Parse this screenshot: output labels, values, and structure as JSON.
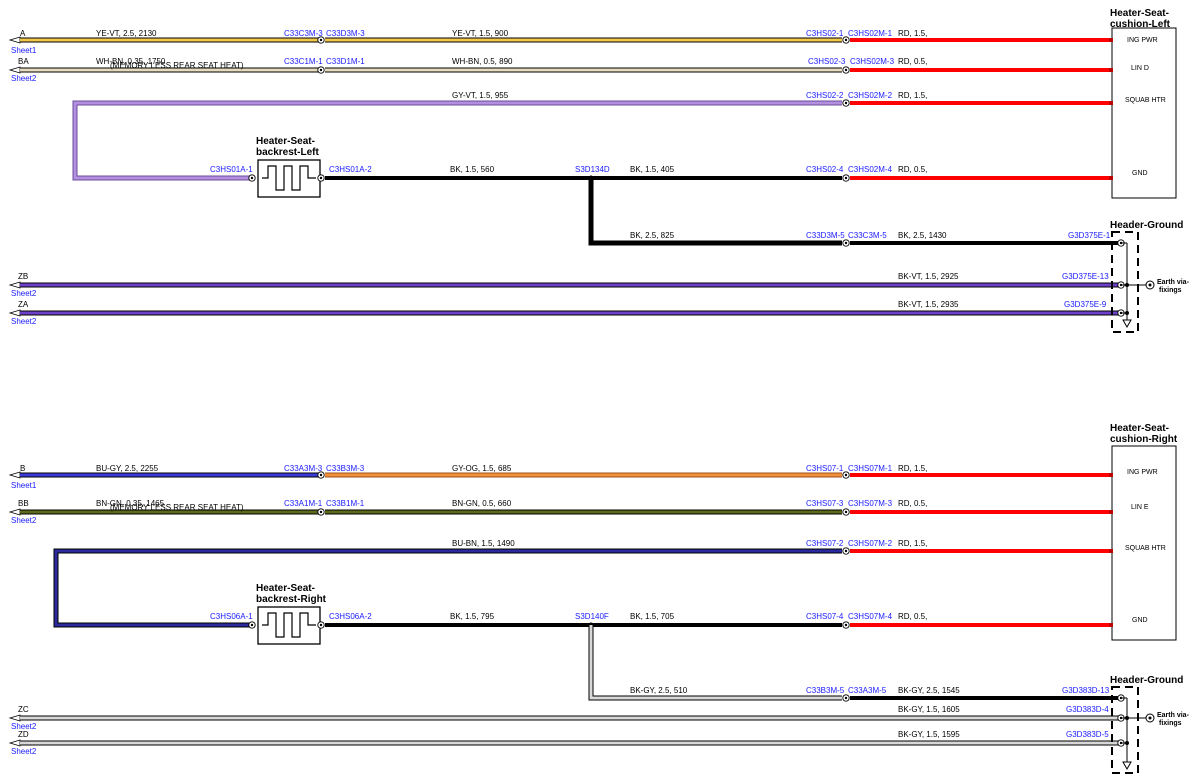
{
  "sections": [
    {
      "component_title": [
        "Heater-Seat-",
        "cushion-Left"
      ],
      "pins": [
        "ING PWR",
        "LIN D",
        "SQUAB HTR",
        "GND"
      ],
      "backrest_title": [
        "Heater-Seat-",
        "backrest-Left"
      ],
      "ground_title": "Header-Ground",
      "earth_label": [
        "Earth via-",
        "fixings"
      ],
      "wires": [
        {
          "id": "A",
          "sheet": "Sheet1",
          "seg1": "YE-VT,  2.5,  2130",
          "c1a": "C33C3M-3",
          "c1b": "C33D3M-3",
          "seg2": "YE-VT,  1.5,  900",
          "c2a": "C3HS02-1",
          "c2b": "C3HS02M-1",
          "seg3": "RD,  1.5,"
        },
        {
          "id": "BA",
          "sheet": "Sheet2",
          "seg1": "WH-BN,  0.35,  1750",
          "note": "(MEMORY LESS REAR SEAT HEAT)",
          "c1a": "C33C1M-1",
          "c1b": "C33D1M-1",
          "seg2": "WH-BN,  0.5,  890",
          "c2a": "C3HS02-3",
          "c2b": "C3HS02M-3",
          "seg3": "RD,  0.5,"
        },
        {
          "seg2": "GY-VT,  1.5,  955",
          "c2a": "C3HS02-2",
          "c2b": "C3HS02M-2",
          "seg3": "RD,  1.5,"
        },
        {
          "c0a": "C3HS01A-1",
          "c0b": "C3HS01A-2",
          "seg2": "BK,  1.5,  560",
          "splice": "S3D134D",
          "seg2b": "BK,  1.5,  405",
          "c2a": "C3HS02-4",
          "c2b": "C3HS02M-4",
          "seg3": "RD,  0.5,"
        },
        {
          "seg2": "BK,  2.5,  825",
          "c2a": "C33D3M-5",
          "c2b": "C33C3M-5",
          "seg3": "BK,  2.5,  1430",
          "gnd": "G3D375E-1"
        },
        {
          "id": "ZB",
          "sheet": "Sheet2",
          "seg3": "BK-VT,  1.5,  2925",
          "gnd": "G3D375E-13"
        },
        {
          "id": "ZA",
          "sheet": "Sheet2",
          "seg3": "BK-VT,  1.5,  2935",
          "gnd": "G3D375E-9"
        }
      ]
    },
    {
      "component_title": [
        "Heater-Seat-",
        "cushion-Right"
      ],
      "pins": [
        "ING PWR",
        "LIN E",
        "SQUAB HTR",
        "GND"
      ],
      "backrest_title": [
        "Heater-Seat-",
        "backrest-Right"
      ],
      "ground_title": "Header-Ground",
      "earth_label": [
        "Earth via-",
        "fixings"
      ],
      "wires": [
        {
          "id": "B",
          "sheet": "Sheet1",
          "seg1": "BU-GY,  2.5,  2255",
          "c1a": "C33A3M-3",
          "c1b": "C33B3M-3",
          "seg2": "GY-OG,  1.5,  685",
          "c2a": "C3HS07-1",
          "c2b": "C3HS07M-1",
          "seg3": "RD,  1.5,"
        },
        {
          "id": "BB",
          "sheet": "Sheet2",
          "seg1": "BN-GN,  0.35,  1465",
          "note": "(MEMORY LESS REAR SEAT HEAT)",
          "c1a": "C33A1M-1",
          "c1b": "C33B1M-1",
          "seg2": "BN-GN,  0.5,  660",
          "c2a": "C3HS07-3",
          "c2b": "C3HS07M-3",
          "seg3": "RD,  0.5,"
        },
        {
          "seg2": "BU-BN,  1.5,  1490",
          "c2a": "C3HS07-2",
          "c2b": "C3HS07M-2",
          "seg3": "RD,  1.5,"
        },
        {
          "c0a": "C3HS06A-1",
          "c0b": "C3HS06A-2",
          "seg2": "BK,  1.5,  795",
          "splice": "S3D140F",
          "seg2b": "BK,  1.5,  705",
          "c2a": "C3HS07-4",
          "c2b": "C3HS07M-4",
          "seg3": "RD,  0.5,"
        },
        {
          "seg2": "BK-GY,  2.5,  510",
          "c2a": "C33B3M-5",
          "c2b": "C33A3M-5",
          "seg3": "BK-GY,  2.5,  1545",
          "gnd": "G3D383D-13"
        },
        {
          "id": "ZC",
          "sheet": "Sheet2",
          "seg3": "BK-GY,  1.5,  1605",
          "gnd": "G3D383D-4"
        },
        {
          "id": "ZD",
          "sheet": "Sheet2",
          "seg3": "BK-GY,  1.5,  1595",
          "gnd": "G3D383D-5"
        }
      ]
    }
  ],
  "colors": {
    "YE-VT": "#f2c84b",
    "WH-BN": "#e8dcc0",
    "GY-VT": "#b38fdf",
    "BK": "#000000",
    "RD": "#ff0000",
    "BK-VT": "#6e40c9",
    "BU-GY": "#3a3ad8",
    "GY-OG": "#f0923c",
    "BN-GN": "#5e6a1a",
    "BU-BN": "#2a2a9c",
    "BK-GY": "#d8d8d8"
  }
}
